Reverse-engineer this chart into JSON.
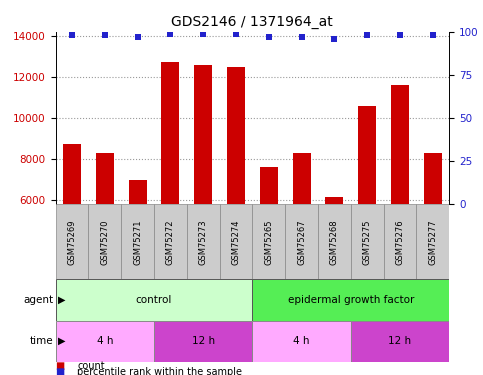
{
  "title": "GDS2146 / 1371964_at",
  "samples": [
    "GSM75269",
    "GSM75270",
    "GSM75271",
    "GSM75272",
    "GSM75273",
    "GSM75274",
    "GSM75265",
    "GSM75267",
    "GSM75268",
    "GSM75275",
    "GSM75276",
    "GSM75277"
  ],
  "counts": [
    8750,
    8300,
    7000,
    12750,
    12600,
    12500,
    7600,
    8300,
    6150,
    10600,
    11600,
    8300
  ],
  "percentile_ranks": [
    98,
    98,
    97,
    99,
    99,
    99,
    97,
    97,
    96,
    98,
    98,
    98
  ],
  "ylim_left": [
    5800,
    14200
  ],
  "ylim_right": [
    0,
    100
  ],
  "yticks_left": [
    6000,
    8000,
    10000,
    12000,
    14000
  ],
  "yticks_right": [
    0,
    25,
    50,
    75,
    100
  ],
  "bar_color": "#cc0000",
  "dot_color": "#2222cc",
  "agent_groups": [
    {
      "label": "control",
      "start": 0,
      "end": 6,
      "color": "#ccffcc"
    },
    {
      "label": "epidermal growth factor",
      "start": 6,
      "end": 12,
      "color": "#55ee55"
    }
  ],
  "time_groups": [
    {
      "label": "4 h",
      "start": 0,
      "end": 3,
      "color": "#ffaaff"
    },
    {
      "label": "12 h",
      "start": 3,
      "end": 6,
      "color": "#cc44cc"
    },
    {
      "label": "4 h",
      "start": 6,
      "end": 9,
      "color": "#ffaaff"
    },
    {
      "label": "12 h",
      "start": 9,
      "end": 12,
      "color": "#cc44cc"
    }
  ],
  "legend_items": [
    {
      "label": "count",
      "color": "#cc0000"
    },
    {
      "label": "percentile rank within the sample",
      "color": "#2222cc"
    }
  ],
  "axis_label_color_left": "#cc0000",
  "axis_label_color_right": "#2222cc",
  "bg_color": "#ffffff",
  "xticklabel_bg": "#cccccc",
  "title_fontsize": 10,
  "tick_fontsize": 7.5,
  "sample_fontsize": 6,
  "row_fontsize": 7.5
}
